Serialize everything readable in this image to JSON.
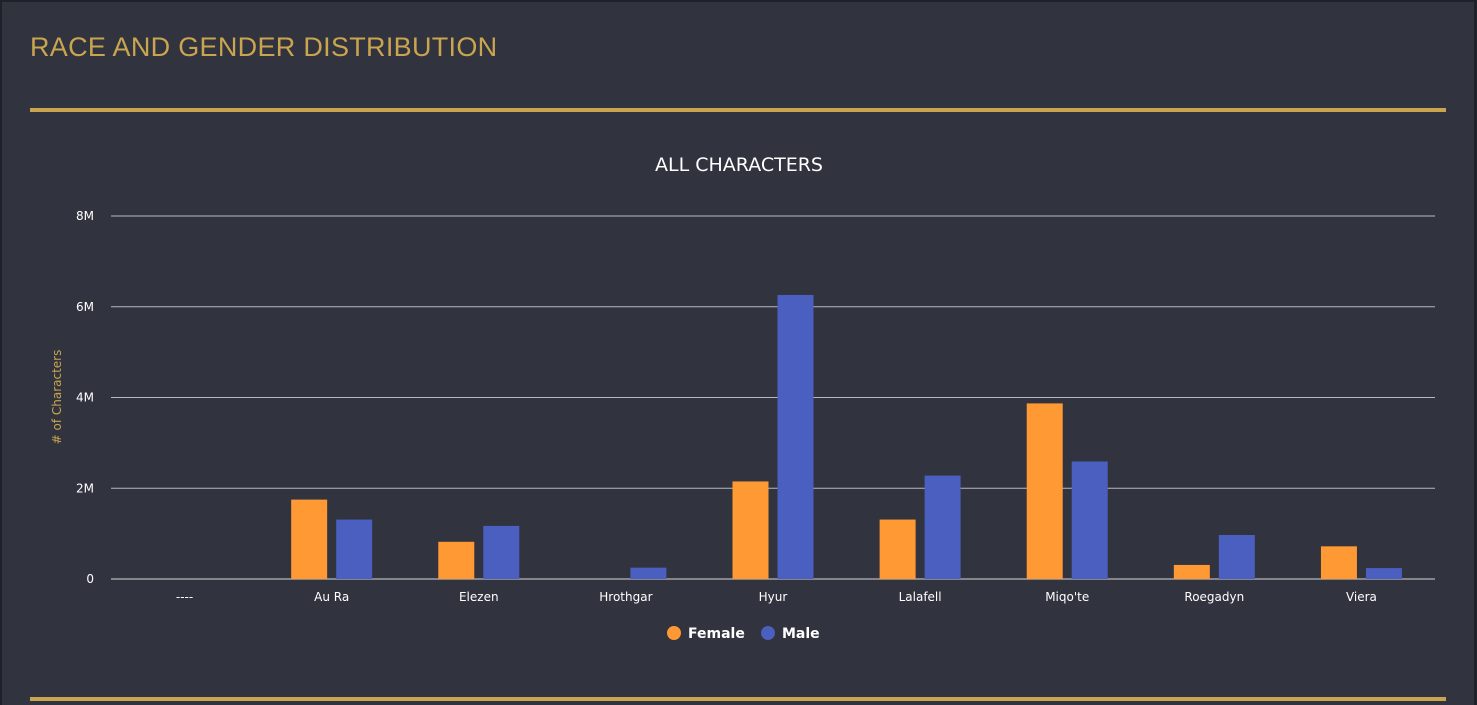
{
  "header": {
    "title": "RACE AND GENDER DISTRIBUTION"
  },
  "colors": {
    "accent": "#c9a54f",
    "background": "#31333f",
    "female": "#ff9933",
    "male": "#4b5fc0"
  },
  "chart_data": {
    "type": "bar",
    "title": "ALL CHARACTERS",
    "xlabel": "",
    "ylabel": "# of Characters",
    "categories": [
      "----",
      "Au Ra",
      "Elezen",
      "Hrothgar",
      "Hyur",
      "Lalafell",
      "Miqo'te",
      "Roegadyn",
      "Viera"
    ],
    "series": [
      {
        "name": "Female",
        "color": "#ff9933",
        "values": [
          0,
          1.75,
          0.82,
          0,
          2.15,
          1.31,
          3.87,
          0.31,
          0.72
        ]
      },
      {
        "name": "Male",
        "color": "#4b5fc0",
        "values": [
          0,
          1.31,
          1.17,
          0.25,
          6.26,
          2.28,
          2.59,
          0.97,
          0.24
        ]
      }
    ],
    "value_unit": "millions",
    "ylim": [
      0,
      8
    ],
    "yticks": [
      0,
      2,
      4,
      6,
      8
    ],
    "ytick_labels": [
      "0",
      "2M",
      "4M",
      "6M",
      "8M"
    ],
    "grid": true,
    "legend_position": "bottom-center"
  }
}
